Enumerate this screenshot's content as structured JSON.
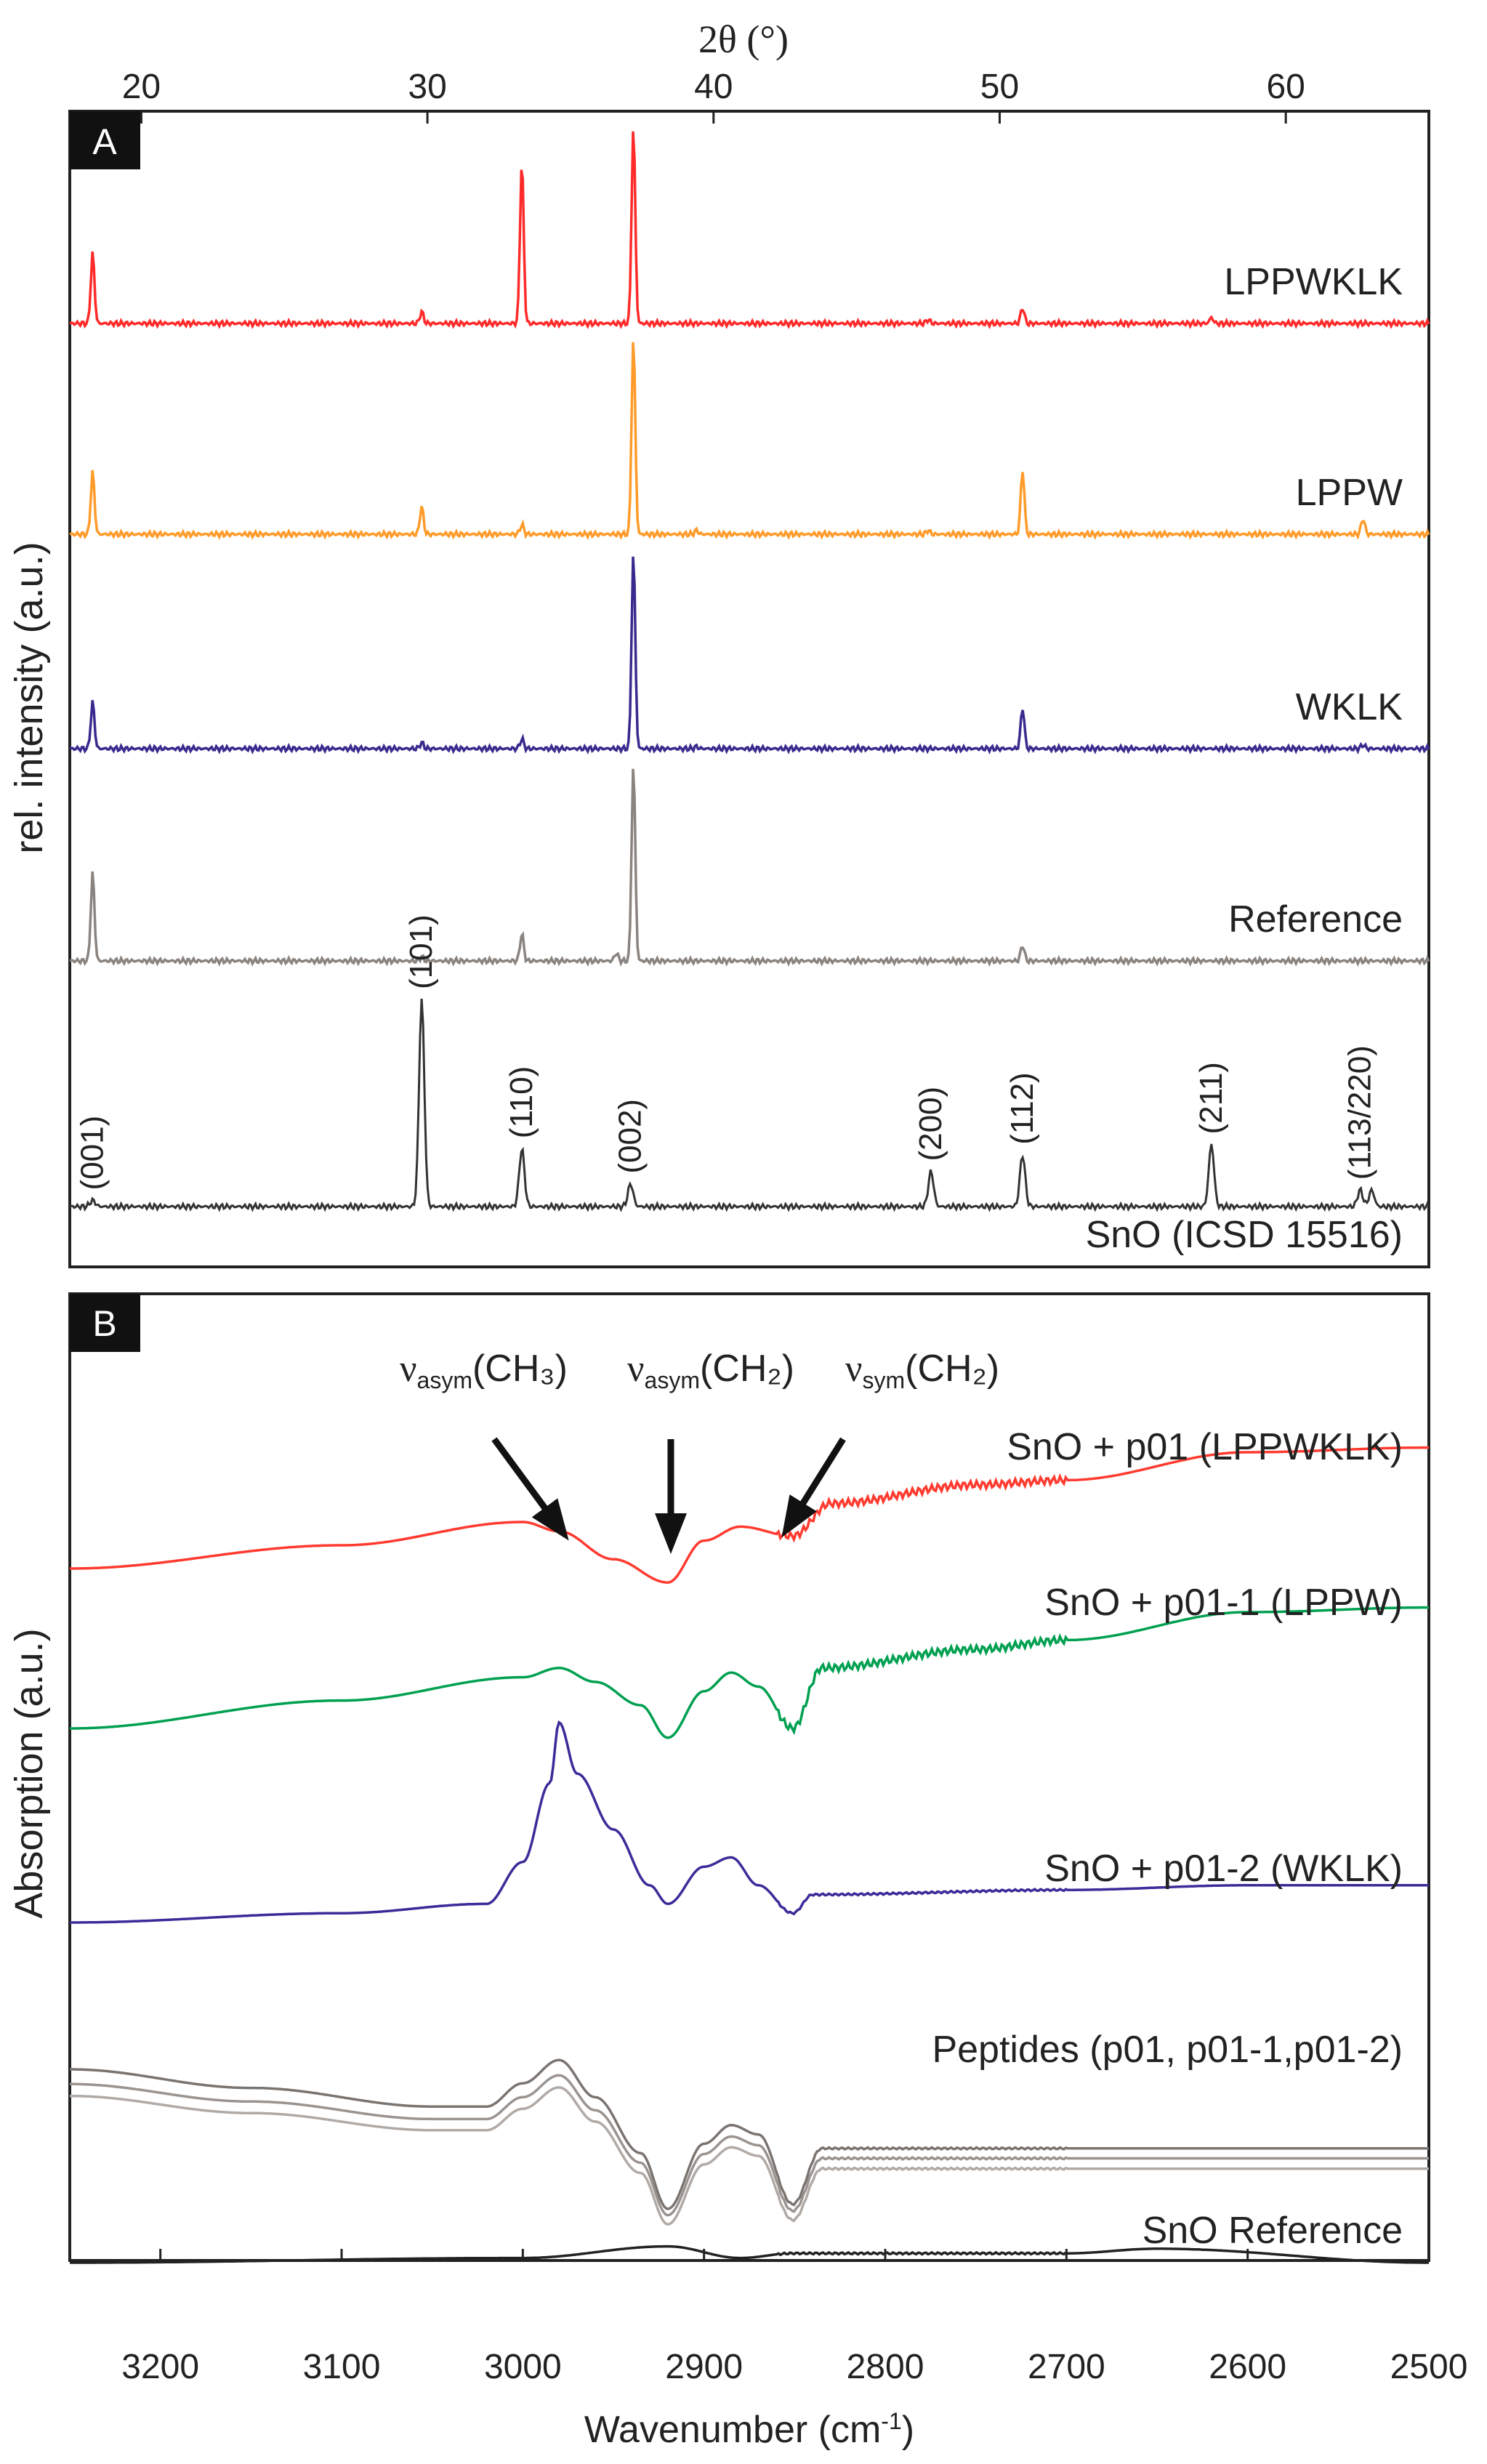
{
  "chart_data": [
    {
      "panel": "A",
      "type": "line",
      "title": "",
      "xlabel": "2θ (°)",
      "ylabel": "rel. intensity (a.u.)",
      "xlim": [
        17.5,
        65
      ],
      "xticks": [
        20,
        30,
        40,
        50,
        60
      ],
      "series": [
        {
          "name": "LPPWKLK",
          "color": "#ff2a2a",
          "peaks": [
            {
              "x": 18.3,
              "h": 0.36
            },
            {
              "x": 29.8,
              "h": 0.06
            },
            {
              "x": 33.3,
              "h": 0.83
            },
            {
              "x": 37.2,
              "h": 1.0
            },
            {
              "x": 47.5,
              "h": 0.02
            },
            {
              "x": 50.8,
              "h": 0.08
            },
            {
              "x": 57.4,
              "h": 0.03
            }
          ]
        },
        {
          "name": "LPPW",
          "color": "#ff9b2a",
          "peaks": [
            {
              "x": 18.3,
              "h": 0.32
            },
            {
              "x": 29.8,
              "h": 0.14
            },
            {
              "x": 33.3,
              "h": 0.05
            },
            {
              "x": 37.2,
              "h": 1.0
            },
            {
              "x": 39.4,
              "h": 0.02
            },
            {
              "x": 47.5,
              "h": 0.02
            },
            {
              "x": 50.8,
              "h": 0.33
            },
            {
              "x": 62.7,
              "h": 0.08
            }
          ]
        },
        {
          "name": "WKLK",
          "color": "#3b2a8e",
          "peaks": [
            {
              "x": 18.3,
              "h": 0.24
            },
            {
              "x": 29.8,
              "h": 0.03
            },
            {
              "x": 33.3,
              "h": 0.05
            },
            {
              "x": 37.2,
              "h": 1.0
            },
            {
              "x": 39.4,
              "h": 0.01
            },
            {
              "x": 50.8,
              "h": 0.21
            },
            {
              "x": 62.7,
              "h": 0.02
            }
          ]
        },
        {
          "name": "Reference",
          "color": "#8a8480",
          "peaks": [
            {
              "x": 18.3,
              "h": 0.45
            },
            {
              "x": 29.8,
              "h": 0.02
            },
            {
              "x": 33.3,
              "h": 0.14
            },
            {
              "x": 36.6,
              "h": 0.04
            },
            {
              "x": 37.2,
              "h": 1.0
            },
            {
              "x": 50.8,
              "h": 0.08
            }
          ]
        }
      ],
      "reference_pattern": {
        "name": "SnO (ICSD 15516)",
        "color": "#333333",
        "peaks": [
          {
            "x": 18.3,
            "h": 0.03,
            "label": "(001)"
          },
          {
            "x": 29.8,
            "h": 1.0,
            "label": "(101)"
          },
          {
            "x": 33.3,
            "h": 0.28,
            "label": "(110)"
          },
          {
            "x": 37.1,
            "h": 0.11,
            "label": "(002)"
          },
          {
            "x": 47.6,
            "h": 0.17,
            "label": "(200)"
          },
          {
            "x": 50.8,
            "h": 0.25,
            "label": "(112)"
          },
          {
            "x": 57.4,
            "h": 0.3,
            "label": "(211)"
          },
          {
            "x": 62.6,
            "h": 0.08,
            "label": "(113/220)"
          },
          {
            "x": 63.0,
            "h": 0.08,
            "label": ""
          }
        ]
      }
    },
    {
      "panel": "B",
      "type": "line",
      "title": "",
      "xlabel": "Wavenumber (cm⁻¹)",
      "ylabel": "Absorption (a.u.)",
      "xlim": [
        3250,
        2500
      ],
      "xticks": [
        3200,
        3100,
        3000,
        2900,
        2800,
        2700,
        2600,
        2500
      ],
      "annotations": [
        {
          "text_main": "ν",
          "text_sub": "asym",
          "text_group": "(CH₃)",
          "x": 2980
        },
        {
          "text_main": "ν",
          "text_sub": "asym",
          "text_group": "(CH₂)",
          "x": 2920
        },
        {
          "text_main": "ν",
          "text_sub": "sym",
          "text_group": "(CH₂)",
          "x": 2851
        }
      ],
      "series": [
        {
          "name": "SnO + p01 (LPPWKLK)",
          "color": "#ff3b30",
          "points": [
            [
              3250,
              0.0
            ],
            [
              3100,
              0.05
            ],
            [
              3000,
              0.1
            ],
            [
              2980,
              0.08
            ],
            [
              2950,
              0.02
            ],
            [
              2920,
              -0.03
            ],
            [
              2900,
              0.06
            ],
            [
              2880,
              0.09
            ],
            [
              2851,
              0.07
            ],
            [
              2830,
              0.14
            ],
            [
              2750,
              0.18
            ],
            [
              2700,
              0.19
            ],
            [
              2600,
              0.25
            ],
            [
              2500,
              0.26
            ]
          ]
        },
        {
          "name": "SnO + p01-1 (LPPW)",
          "color": "#00a050",
          "points": [
            [
              3250,
              0.0
            ],
            [
              3100,
              0.06
            ],
            [
              3000,
              0.11
            ],
            [
              2980,
              0.13
            ],
            [
              2960,
              0.1
            ],
            [
              2935,
              0.05
            ],
            [
              2920,
              -0.02
            ],
            [
              2900,
              0.08
            ],
            [
              2885,
              0.12
            ],
            [
              2870,
              0.09
            ],
            [
              2851,
              0.0
            ],
            [
              2835,
              0.13
            ],
            [
              2750,
              0.17
            ],
            [
              2700,
              0.19
            ],
            [
              2600,
              0.25
            ],
            [
              2500,
              0.26
            ]
          ]
        },
        {
          "name": "SnO + p01-2 (WKLK)",
          "color": "#3f2a99",
          "points": [
            [
              3250,
              0.0
            ],
            [
              3100,
              0.02
            ],
            [
              3020,
              0.04
            ],
            [
              3000,
              0.13
            ],
            [
              2985,
              0.3
            ],
            [
              2980,
              0.43
            ],
            [
              2970,
              0.32
            ],
            [
              2950,
              0.2
            ],
            [
              2930,
              0.08
            ],
            [
              2920,
              0.04
            ],
            [
              2900,
              0.12
            ],
            [
              2885,
              0.14
            ],
            [
              2870,
              0.08
            ],
            [
              2851,
              0.02
            ],
            [
              2840,
              0.06
            ],
            [
              2700,
              0.07
            ],
            [
              2600,
              0.08
            ],
            [
              2500,
              0.08
            ]
          ]
        },
        {
          "name": "Peptides (p01, p01-1,p01-2)",
          "color": "#7a7470",
          "points": [
            [
              3250,
              0.2
            ],
            [
              3150,
              0.16
            ],
            [
              3050,
              0.12
            ],
            [
              3020,
              0.12
            ],
            [
              3000,
              0.17
            ],
            [
              2980,
              0.22
            ],
            [
              2960,
              0.14
            ],
            [
              2935,
              0.02
            ],
            [
              2920,
              -0.1
            ],
            [
              2900,
              0.04
            ],
            [
              2885,
              0.08
            ],
            [
              2870,
              0.06
            ],
            [
              2851,
              -0.09
            ],
            [
              2835,
              0.03
            ],
            [
              2700,
              0.03
            ],
            [
              2500,
              0.03
            ]
          ]
        },
        {
          "name": "SnO Reference",
          "color": "#222222",
          "points": [
            [
              3250,
              0.0
            ],
            [
              3000,
              0.01
            ],
            [
              2920,
              0.035
            ],
            [
              2880,
              0.01
            ],
            [
              2851,
              0.02
            ],
            [
              2700,
              0.02
            ],
            [
              2650,
              0.03
            ],
            [
              2500,
              0.0
            ]
          ]
        }
      ]
    }
  ],
  "panels": {
    "a": {
      "tag": "A",
      "top_axis_label": "2θ (°)"
    },
    "b": {
      "tag": "B",
      "axis_label_main": "Wavenumber (cm",
      "axis_label_sup": "-1",
      "axis_label_end": ")"
    }
  }
}
